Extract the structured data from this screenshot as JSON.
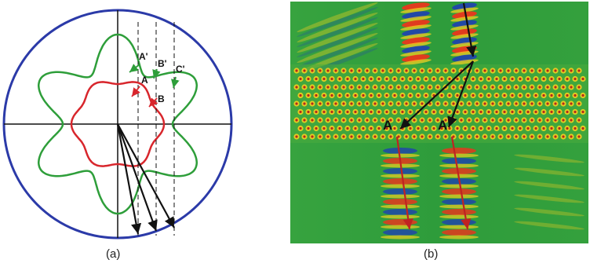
{
  "figure": {
    "panel_a": {
      "caption": "(a)",
      "point_labels": [
        "A'",
        "A",
        "B'",
        "B",
        "C'"
      ],
      "colors": {
        "outer_circle": "#2b3aa8",
        "green_contour": "#2e9e3a",
        "red_contour": "#d8262c",
        "axes": "#111111",
        "arrows": "#111111"
      }
    },
    "panel_b": {
      "caption": "(b)",
      "point_labels": [
        "A",
        "A"
      ],
      "colors": {
        "background": "#2f9e3c",
        "crystal_region": "#4cae3f",
        "hole_ring": "#ffd21f",
        "hole_core": "#b01818",
        "positive_field": "#ff2a1a",
        "negative_field": "#1e3bb8",
        "arrows_black": "#111111",
        "arrows_red": "#c02222"
      }
    }
  }
}
